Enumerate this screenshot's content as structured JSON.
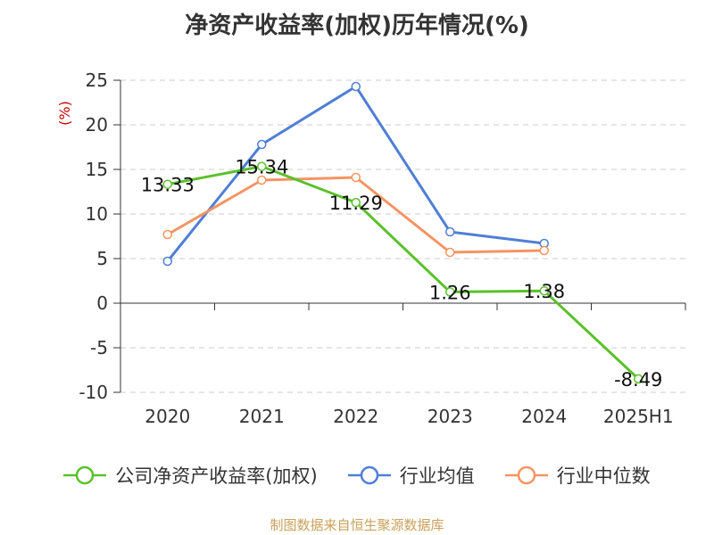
{
  "title": "净资产收益率(加权)历年情况(%)",
  "source": "制图数据来自恒生聚源数据库",
  "chart_data": {
    "type": "line",
    "categories": [
      "2020",
      "2021",
      "2022",
      "2023",
      "2024",
      "2025H1"
    ],
    "ylabel": "(%)",
    "ylim": [
      -10,
      25
    ],
    "yticks": [
      -10,
      -5,
      0,
      5,
      10,
      15,
      20,
      25
    ],
    "grid": true,
    "legend_position": "bottom",
    "series": [
      {
        "name": "公司净资产收益率(加权)",
        "color": "#5ac12b",
        "values": [
          13.33,
          15.34,
          11.29,
          1.26,
          1.38,
          -8.49
        ],
        "labels": [
          "13.33",
          "15.34",
          "11.29",
          "1.26",
          "1.38",
          "-8.49"
        ]
      },
      {
        "name": "行业均值",
        "color": "#4f7fd6",
        "values": [
          4.7,
          17.8,
          24.3,
          8.0,
          6.7,
          null
        ]
      },
      {
        "name": "行业中位数",
        "color": "#f59462",
        "values": [
          7.7,
          13.8,
          14.1,
          5.7,
          5.9,
          null
        ]
      }
    ]
  }
}
